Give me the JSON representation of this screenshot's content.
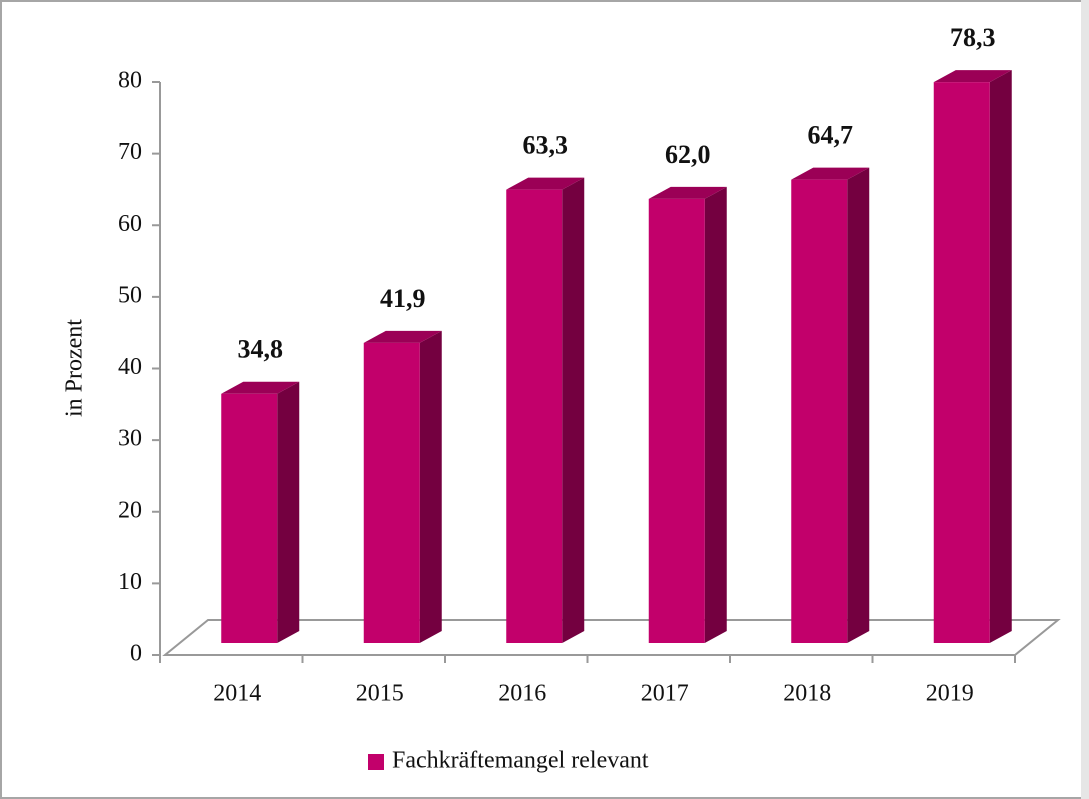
{
  "chart_data": {
    "type": "bar3d",
    "y_axis_label": "in Prozent",
    "categories": [
      "2014",
      "2015",
      "2016",
      "2017",
      "2018",
      "2019"
    ],
    "series": [
      {
        "name": "Fachkräftemangel relevant",
        "color": "#c2006b",
        "values": [
          34.8,
          41.9,
          63.3,
          62.0,
          64.7,
          78.3
        ],
        "value_labels": [
          "34,8",
          "41,9",
          "63,3",
          "62,0",
          "64,7",
          "78,3"
        ]
      }
    ],
    "ylim": [
      0,
      80
    ],
    "yticks": [
      0,
      10,
      20,
      30,
      40,
      50,
      60,
      70,
      80
    ],
    "legend": "bottom"
  }
}
